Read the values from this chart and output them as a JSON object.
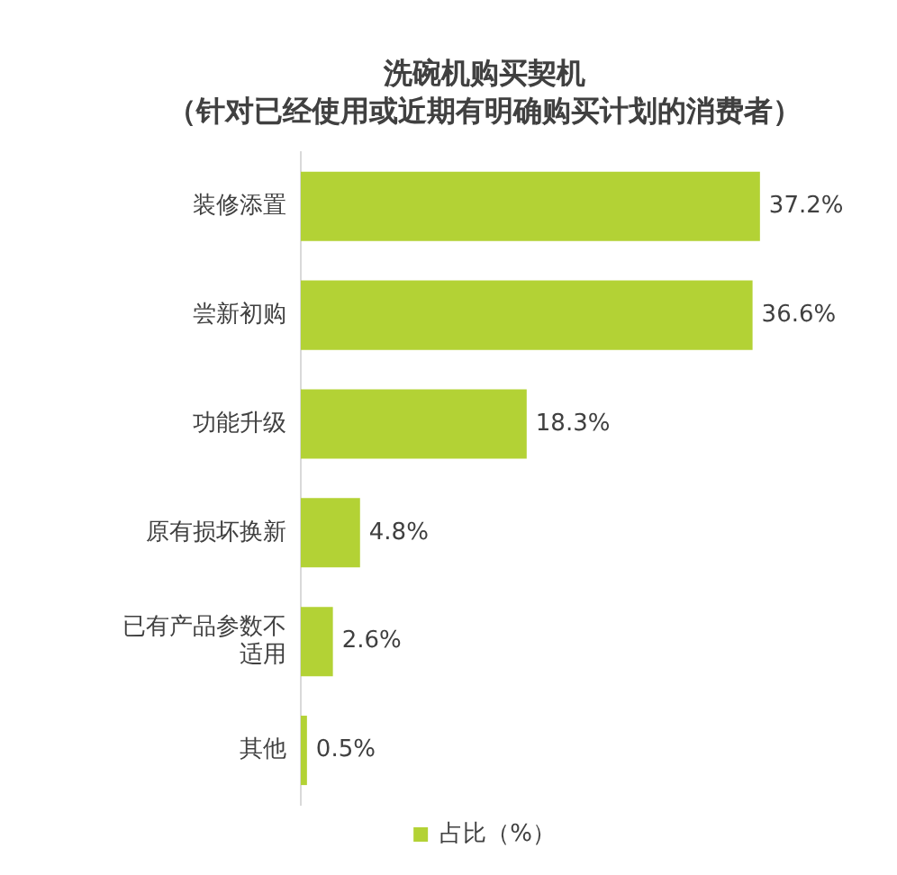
{
  "chart_data": {
    "type": "bar",
    "orientation": "horizontal",
    "title": "洗碗机购买契机",
    "subtitle": "（针对已经使用或近期有明确购买计划的消费者）",
    "categories": [
      "装修添置",
      "尝新初购",
      "功能升级",
      "原有损坏换新",
      "已有产品参数不适用",
      "其他"
    ],
    "series": [
      {
        "name": "占比（%）",
        "color": "#b3d235",
        "values": [
          37.2,
          36.6,
          18.3,
          4.8,
          2.6,
          0.5
        ],
        "value_labels": [
          "37.2%",
          "36.6%",
          "18.3%",
          "4.8%",
          "2.6%",
          "0.5%"
        ]
      }
    ],
    "tick_labels": "y",
    "legend": "bottom"
  }
}
